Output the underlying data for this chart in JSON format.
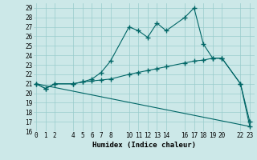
{
  "xlabel": "Humidex (Indice chaleur)",
  "x_ticks": [
    0,
    1,
    2,
    4,
    5,
    6,
    7,
    8,
    10,
    11,
    12,
    13,
    14,
    16,
    17,
    18,
    19,
    20,
    22,
    23
  ],
  "line1_x": [
    0,
    1,
    2,
    4,
    5,
    6,
    7,
    8,
    10,
    11,
    12,
    13,
    14,
    16,
    17,
    18,
    19,
    20,
    22,
    23
  ],
  "line1_y": [
    21.0,
    20.5,
    21.0,
    21.0,
    21.2,
    21.5,
    22.2,
    23.4,
    27.0,
    26.6,
    25.9,
    27.4,
    26.6,
    28.0,
    29.0,
    25.2,
    23.7,
    23.7,
    21.0,
    17.0
  ],
  "line2_x": [
    0,
    1,
    2,
    4,
    5,
    6,
    7,
    8,
    10,
    11,
    12,
    13,
    14,
    16,
    17,
    18,
    19,
    20,
    22,
    23
  ],
  "line2_y": [
    21.0,
    20.5,
    21.0,
    21.0,
    21.2,
    21.3,
    21.4,
    21.5,
    22.0,
    22.2,
    22.4,
    22.6,
    22.8,
    23.2,
    23.4,
    23.5,
    23.7,
    23.7,
    21.0,
    16.5
  ],
  "line3_x": [
    0,
    23
  ],
  "line3_y": [
    21.0,
    16.5
  ],
  "ylim": [
    16,
    29.5
  ],
  "xlim": [
    -0.3,
    23.5
  ],
  "yticks": [
    16,
    17,
    18,
    19,
    20,
    21,
    22,
    23,
    24,
    25,
    26,
    27,
    28,
    29
  ],
  "bg_color": "#cce8e8",
  "line_color": "#006666",
  "grid_color": "#99cccc"
}
